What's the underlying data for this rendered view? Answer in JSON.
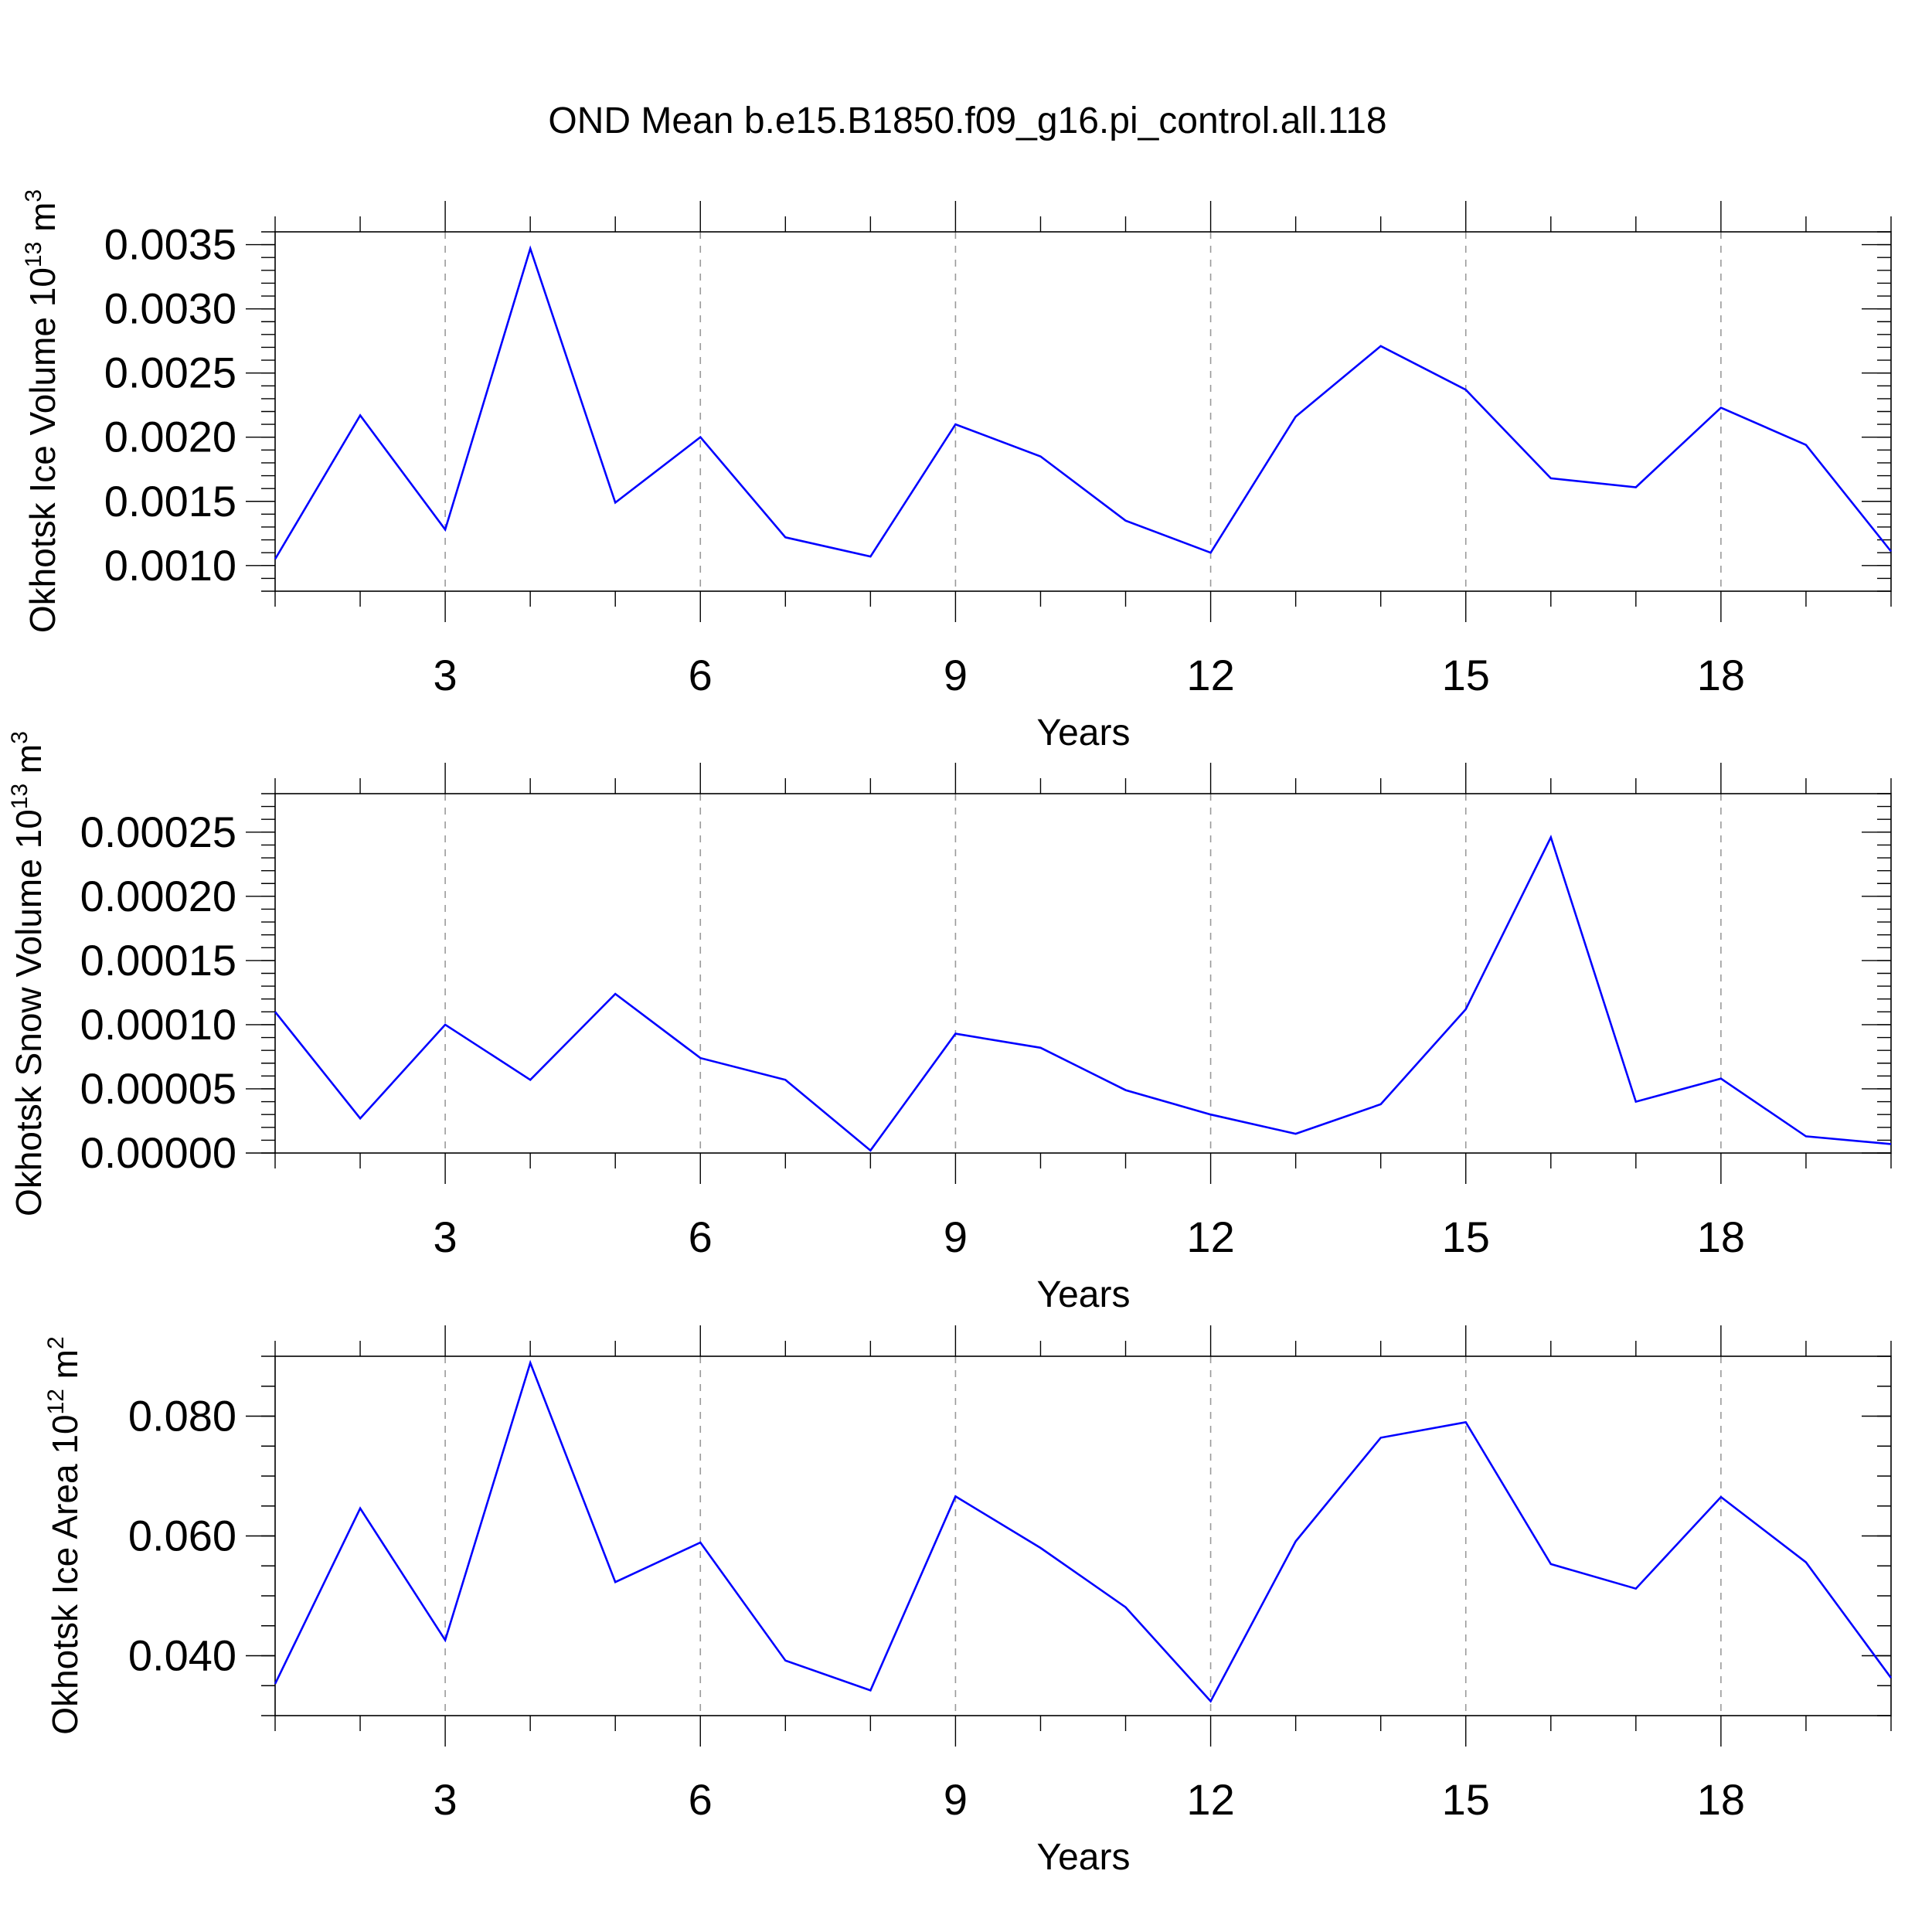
{
  "title": "OND Mean b.e15.B1850.f09_g16.pi_control.all.118",
  "colors": {
    "line": "#0000ff",
    "frame": "#000000",
    "grid": "#9a9a9a"
  },
  "chart_data": [
    {
      "type": "line",
      "xlabel": "Years",
      "ylabel": {
        "text": "Okhotsk Ice Volume 10",
        "sup1": "13",
        "unit": " m",
        "sup2": "3"
      },
      "xlim": [
        1,
        20
      ],
      "ylim": [
        0.0008,
        0.0036
      ],
      "xticks": [
        3,
        6,
        9,
        12,
        15,
        18
      ],
      "xtick_labels": [
        "3",
        "6",
        "9",
        "12",
        "15",
        "18"
      ],
      "yticks": [
        0.001,
        0.0015,
        0.002,
        0.0025,
        0.003,
        0.0035
      ],
      "ytick_labels": [
        "0.0010",
        "0.0015",
        "0.0020",
        "0.0025",
        "0.0030",
        "0.0035"
      ],
      "ymin_step": 0.0001,
      "grid": "x-dashed",
      "x": [
        1,
        2,
        3,
        4,
        5,
        6,
        7,
        8,
        9,
        10,
        11,
        12,
        13,
        14,
        15,
        16,
        17,
        18,
        19,
        20
      ],
      "values": [
        0.00105,
        0.00217,
        0.00128,
        0.00347,
        0.00149,
        0.002,
        0.00122,
        0.00107,
        0.0021,
        0.00185,
        0.00135,
        0.0011,
        0.00216,
        0.00271,
        0.00237,
        0.00168,
        0.00161,
        0.00223,
        0.00194,
        0.00111
      ]
    },
    {
      "type": "line",
      "xlabel": "Years",
      "ylabel": {
        "text": "Okhotsk Snow Volume 10",
        "sup1": "13",
        "unit": " m",
        "sup2": "3"
      },
      "xlim": [
        1,
        20
      ],
      "ylim": [
        0.0,
        0.00028
      ],
      "xticks": [
        3,
        6,
        9,
        12,
        15,
        18
      ],
      "xtick_labels": [
        "3",
        "6",
        "9",
        "12",
        "15",
        "18"
      ],
      "yticks": [
        0.0,
        5e-05,
        0.0001,
        0.00015,
        0.0002,
        0.00025
      ],
      "ytick_labels": [
        "0.00000",
        "0.00005",
        "0.00010",
        "0.00015",
        "0.00020",
        "0.00025"
      ],
      "ymin_step": 1e-05,
      "grid": "x-dashed",
      "x": [
        1,
        2,
        3,
        4,
        5,
        6,
        7,
        8,
        9,
        10,
        11,
        12,
        13,
        14,
        15,
        16,
        17,
        18,
        19,
        20
      ],
      "values": [
        0.00011,
        2.7e-05,
        0.0001,
        5.7e-05,
        0.000124,
        7.4e-05,
        5.7e-05,
        2e-06,
        9.3e-05,
        8.2e-05,
        4.9e-05,
        3e-05,
        1.5e-05,
        3.8e-05,
        0.000112,
        0.000246,
        4e-05,
        5.8e-05,
        1.3e-05,
        7e-06
      ]
    },
    {
      "type": "line",
      "xlabel": "Years",
      "ylabel": {
        "text": "Okhotsk Ice Area 10",
        "sup1": "12",
        "unit": " m",
        "sup2": "2"
      },
      "xlim": [
        1,
        20
      ],
      "ylim": [
        0.03,
        0.09
      ],
      "xticks": [
        3,
        6,
        9,
        12,
        15,
        18
      ],
      "xtick_labels": [
        "3",
        "6",
        "9",
        "12",
        "15",
        "18"
      ],
      "yticks": [
        0.04,
        0.06,
        0.08
      ],
      "ytick_labels": [
        "0.040",
        "0.060",
        "0.080"
      ],
      "ymin_step": 0.005,
      "grid": "x-dashed",
      "x": [
        1,
        2,
        3,
        4,
        5,
        6,
        7,
        8,
        9,
        10,
        11,
        12,
        13,
        14,
        15,
        16,
        17,
        18,
        19,
        20
      ],
      "values": [
        0.0353,
        0.0646,
        0.0426,
        0.0889,
        0.0523,
        0.0589,
        0.0392,
        0.0342,
        0.0666,
        0.058,
        0.0481,
        0.0324,
        0.0591,
        0.0764,
        0.079,
        0.0553,
        0.0512,
        0.0665,
        0.0556,
        0.0363
      ]
    }
  ]
}
